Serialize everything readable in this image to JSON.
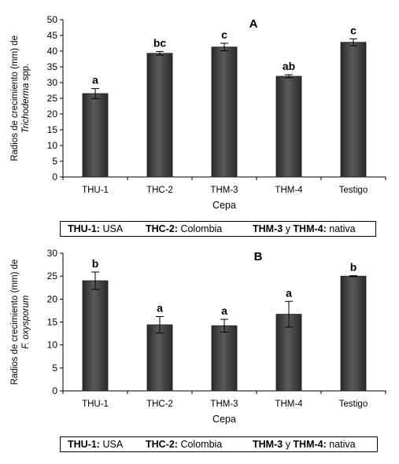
{
  "chart_data": [
    {
      "type": "bar",
      "panel_label": "A",
      "categories": [
        "THU-1",
        "THC-2",
        "THM-3",
        "THM-4",
        "Testigo"
      ],
      "values": [
        26.5,
        39.3,
        41.3,
        32.0,
        42.8
      ],
      "errors": [
        1.6,
        0.6,
        1.2,
        0.5,
        1.1
      ],
      "letters": [
        "a",
        "bc",
        "c",
        "ab",
        "c"
      ],
      "xlabel": "Cepa",
      "ylabel_line1": "Radios de crecimiento (mm) de",
      "ylabel_line2": "Trichoderma",
      "ylabel_line2_suffix": " spp.",
      "ylim": [
        0,
        50
      ],
      "yticks": [
        "0",
        "5",
        "10",
        "15",
        "20",
        "25",
        "30",
        "35",
        "40",
        "45",
        "50"
      ],
      "bar_color": "#3a3a3a"
    },
    {
      "type": "bar",
      "panel_label": "B",
      "categories": [
        "THU-1",
        "THC-2",
        "THM-3",
        "THM-4",
        "Testigo"
      ],
      "values": [
        24.0,
        14.4,
        14.2,
        16.7,
        25.0
      ],
      "errors": [
        1.9,
        1.8,
        1.4,
        2.8,
        0.1
      ],
      "letters": [
        "b",
        "a",
        "a",
        "a",
        "b"
      ],
      "xlabel": "Cepa",
      "ylabel_line1": "Radios de crecimiento (mm) de",
      "ylabel_line2": "F. oxysporum",
      "ylabel_line2_suffix": "",
      "ylim": [
        0,
        30
      ],
      "yticks": [
        "0",
        "5",
        "10",
        "15",
        "20",
        "25",
        "30"
      ],
      "bar_color": "#3a3a3a"
    }
  ],
  "legend": {
    "thu_key": "THU-1:",
    "thu_val": "USA",
    "thc_key": "THC-2:",
    "thc_val": "Colombia",
    "thm3_key": "THM-3",
    "thm_and": "y",
    "thm4_key": "THM-4:",
    "thm_val": "nativa"
  }
}
